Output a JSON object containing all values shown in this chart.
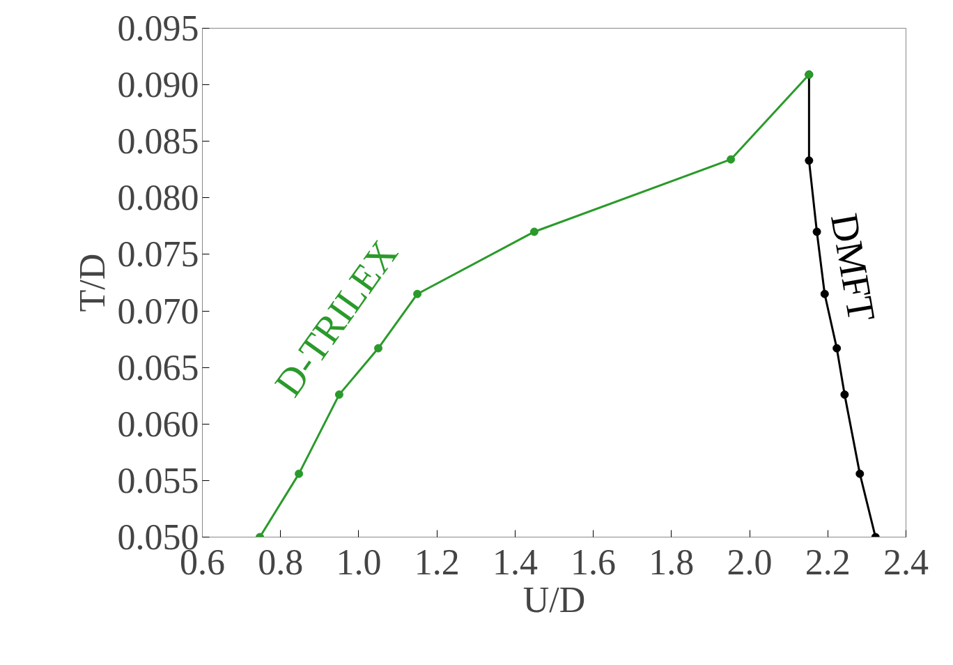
{
  "chart_data": {
    "type": "line",
    "xlabel": "U/D",
    "ylabel": "T/D",
    "xlim": [
      0.6,
      2.4
    ],
    "ylim": [
      0.05,
      0.095
    ],
    "xticks": [
      {
        "value": 0.6,
        "label": "0.6"
      },
      {
        "value": 0.8,
        "label": "0.8"
      },
      {
        "value": 1.0,
        "label": "1.0"
      },
      {
        "value": 1.2,
        "label": "1.2"
      },
      {
        "value": 1.4,
        "label": "1.4"
      },
      {
        "value": 1.6,
        "label": "1.6"
      },
      {
        "value": 1.8,
        "label": "1.8"
      },
      {
        "value": 2.0,
        "label": "2.0"
      },
      {
        "value": 2.2,
        "label": "2.2"
      },
      {
        "value": 2.4,
        "label": "2.4"
      }
    ],
    "yticks": [
      {
        "value": 0.05,
        "label": "0.050"
      },
      {
        "value": 0.055,
        "label": "0.055"
      },
      {
        "value": 0.06,
        "label": "0.060"
      },
      {
        "value": 0.065,
        "label": "0.065"
      },
      {
        "value": 0.07,
        "label": "0.070"
      },
      {
        "value": 0.075,
        "label": "0.075"
      },
      {
        "value": 0.08,
        "label": "0.080"
      },
      {
        "value": 0.085,
        "label": "0.085"
      },
      {
        "value": 0.09,
        "label": "0.090"
      },
      {
        "value": 0.095,
        "label": "0.095"
      }
    ],
    "marker": "circle",
    "grid": false,
    "series": [
      {
        "color": "#2a9a2a",
        "x": [
          0.747,
          0.847,
          0.95,
          1.05,
          1.15,
          1.449,
          1.952,
          2.152
        ],
        "values": [
          0.05,
          0.0556,
          0.0626,
          0.0667,
          0.0715,
          0.077,
          0.0834,
          0.0909
        ]
      },
      {
        "color": "#000000",
        "x": [
          2.152,
          2.152,
          2.172,
          2.192,
          2.223,
          2.243,
          2.282,
          2.322
        ],
        "values": [
          0.0909,
          0.0833,
          0.077,
          0.0715,
          0.0667,
          0.0626,
          0.0556,
          0.05
        ]
      }
    ],
    "annotations": [
      "D-TRILEX",
      "DMFT"
    ]
  }
}
